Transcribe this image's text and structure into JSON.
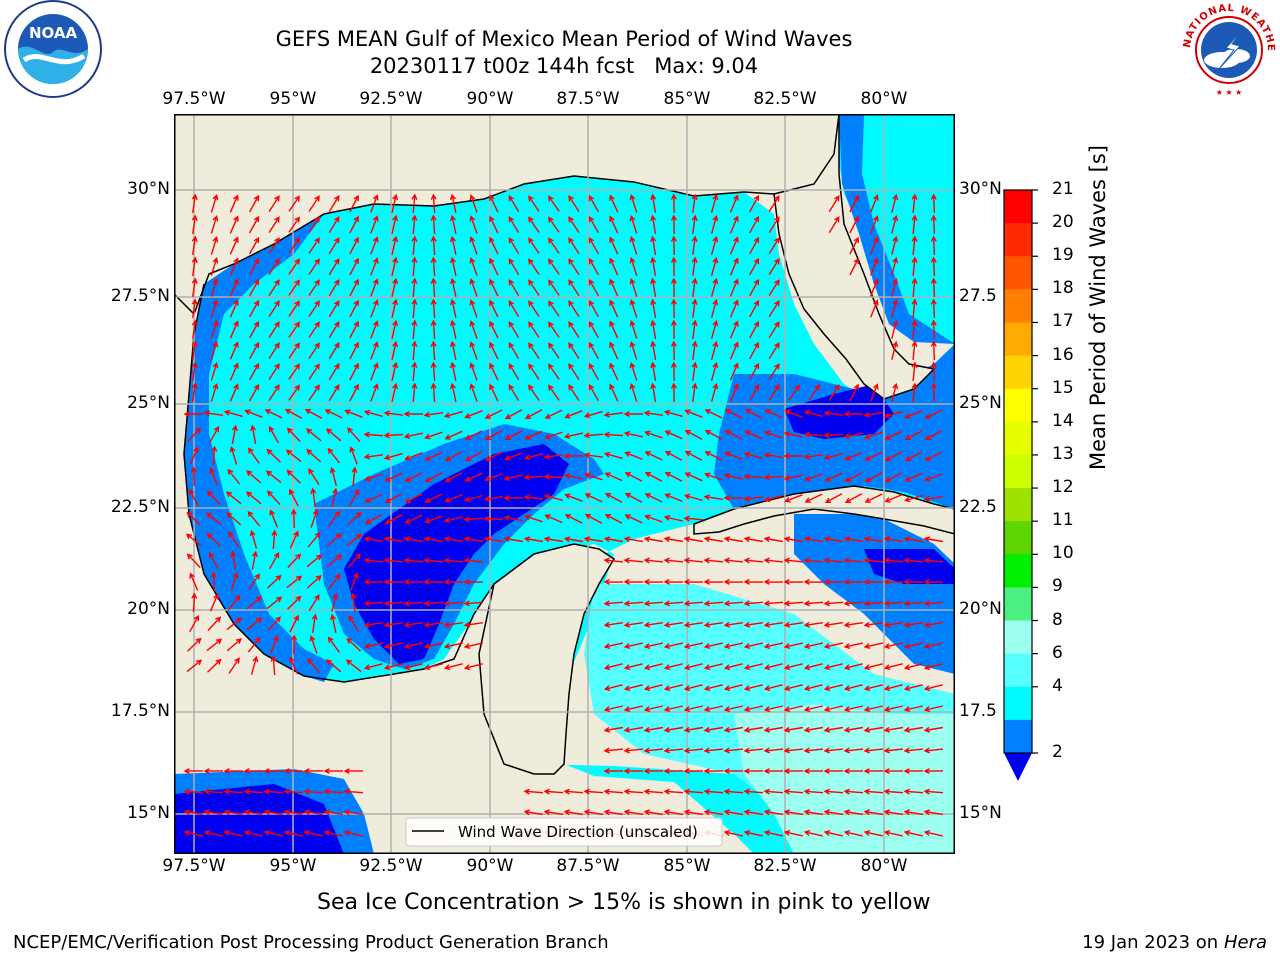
{
  "header": {
    "title_line1": "GEFS MEAN Gulf of Mexico Mean Period of Wind Waves",
    "title_line2": "20230117 t00z 144h fcst   Max: 9.04"
  },
  "logos": {
    "left": {
      "name": "NOARA-logo",
      "emblem_text": "NOAA",
      "ring_text": "NATIONAL OCEANIC AND ATMOSPHERIC ADMINISTRATION · U.S. DEPARTMENT OF COMMERCE"
    },
    "right": {
      "name": "nws-logo",
      "ring_text": "NATIONAL WEATHER SERVICE"
    }
  },
  "axes": {
    "lon_ticks": [
      "97.5°W",
      "95°W",
      "92.5°W",
      "90°W",
      "87.5°W",
      "85°W",
      "82.5°W",
      "80°W"
    ],
    "lat_ticks_left": [
      "30°N",
      "27.5°N",
      "25°N",
      "22.5°N",
      "20°N",
      "17.5°N",
      "15°N"
    ],
    "lat_ticks_right": [
      "30°N",
      "27.5",
      "25°N",
      "22.5",
      "20°N",
      "17.5",
      "15°N"
    ]
  },
  "legend": {
    "label": "Wind Wave Direction (unscaled)"
  },
  "colorbar": {
    "label": "Mean Period of Wind Waves [s]",
    "ticks": [
      "21",
      "20",
      "19",
      "18",
      "17",
      "16",
      "15",
      "14",
      "13",
      "12",
      "11",
      "10",
      "9",
      "8",
      "6",
      "4",
      "2"
    ],
    "colors": [
      "#ff0000",
      "#ff2a00",
      "#ff5500",
      "#ff8000",
      "#ffaa00",
      "#ffd400",
      "#ffff00",
      "#e6ff00",
      "#ccff00",
      "#9ee000",
      "#5ed500",
      "#00ee00",
      "#4cf080",
      "#9cfff0",
      "#55ffff",
      "#00fbff",
      "#0080ff"
    ],
    "extend_color": "#0000f0"
  },
  "map_colors": {
    "land": "#efecdc",
    "level_2_4": "#0080ff",
    "level_4_6": "#00fbff",
    "level_below_2": "#0000f0",
    "level_6_8": "#55ffff",
    "level_8_9": "#9cfff0",
    "arrows": "#ff0000",
    "grid": "#b0b0b0"
  },
  "notes": {
    "sea_ice": "Sea Ice Concentration > 15% is shown in pink to yellow",
    "footer_left": "NCEP/EMC/Verification Post Processing Product Generation Branch",
    "footer_right_prefix": "19 Jan 2023 on ",
    "footer_right_host": "Hera"
  }
}
